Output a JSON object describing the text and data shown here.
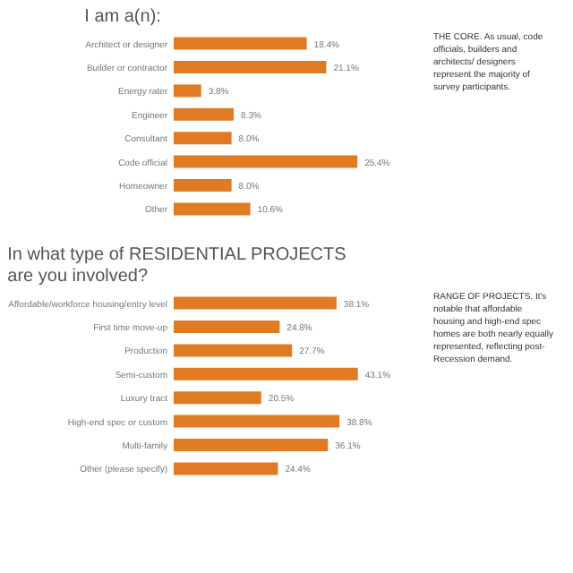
{
  "chart_data": [
    {
      "type": "bar",
      "orientation": "horizontal",
      "title": "I am a(n):",
      "categories": [
        "Architect or designer",
        "Builder or contractor",
        "Energy rater",
        "Engineer",
        "Consultant",
        "Code official",
        "Homeowner",
        "Other"
      ],
      "values": [
        18.4,
        21.1,
        3.8,
        8.3,
        8.0,
        25.4,
        8.0,
        10.6
      ],
      "value_labels": [
        "18.4%",
        "21.1%",
        "3.8%",
        "8.3%",
        "8.0%",
        "25.4%",
        "8.0%",
        "10.6%"
      ],
      "color": "#e07b24",
      "xlim": [
        0,
        26
      ],
      "tick_labels": "y",
      "annotations": [
        "THE CORE. As usual, code officials, builders and architects/ designers represent the majority of survey participants."
      ]
    },
    {
      "type": "bar",
      "orientation": "horizontal",
      "title": "In what type of RESIDENTIAL PROJECTS are you involved?",
      "categories": [
        "Affordable/workforce housing/entry level",
        "First time move-up",
        "Production",
        "Semi-custom",
        "Luxury tract",
        "High-end spec or custom",
        "Multi-family",
        "Other (please specify)"
      ],
      "values": [
        38.1,
        24.8,
        27.7,
        43.1,
        20.5,
        38.8,
        36.1,
        24.4
      ],
      "value_labels": [
        "38.1%",
        "24.8%",
        "27.7%",
        "43.1%",
        "20.5%",
        "38.8%",
        "36.1%",
        "24.4%"
      ],
      "color": "#e07b24",
      "xlim": [
        0,
        44
      ],
      "tick_labels": "y",
      "annotations": [
        "RANGE OF PROJECTS. It's notable that affordable housing and high-end spec homes are both nearly equally represented, reflecting post-Recession demand."
      ]
    }
  ]
}
